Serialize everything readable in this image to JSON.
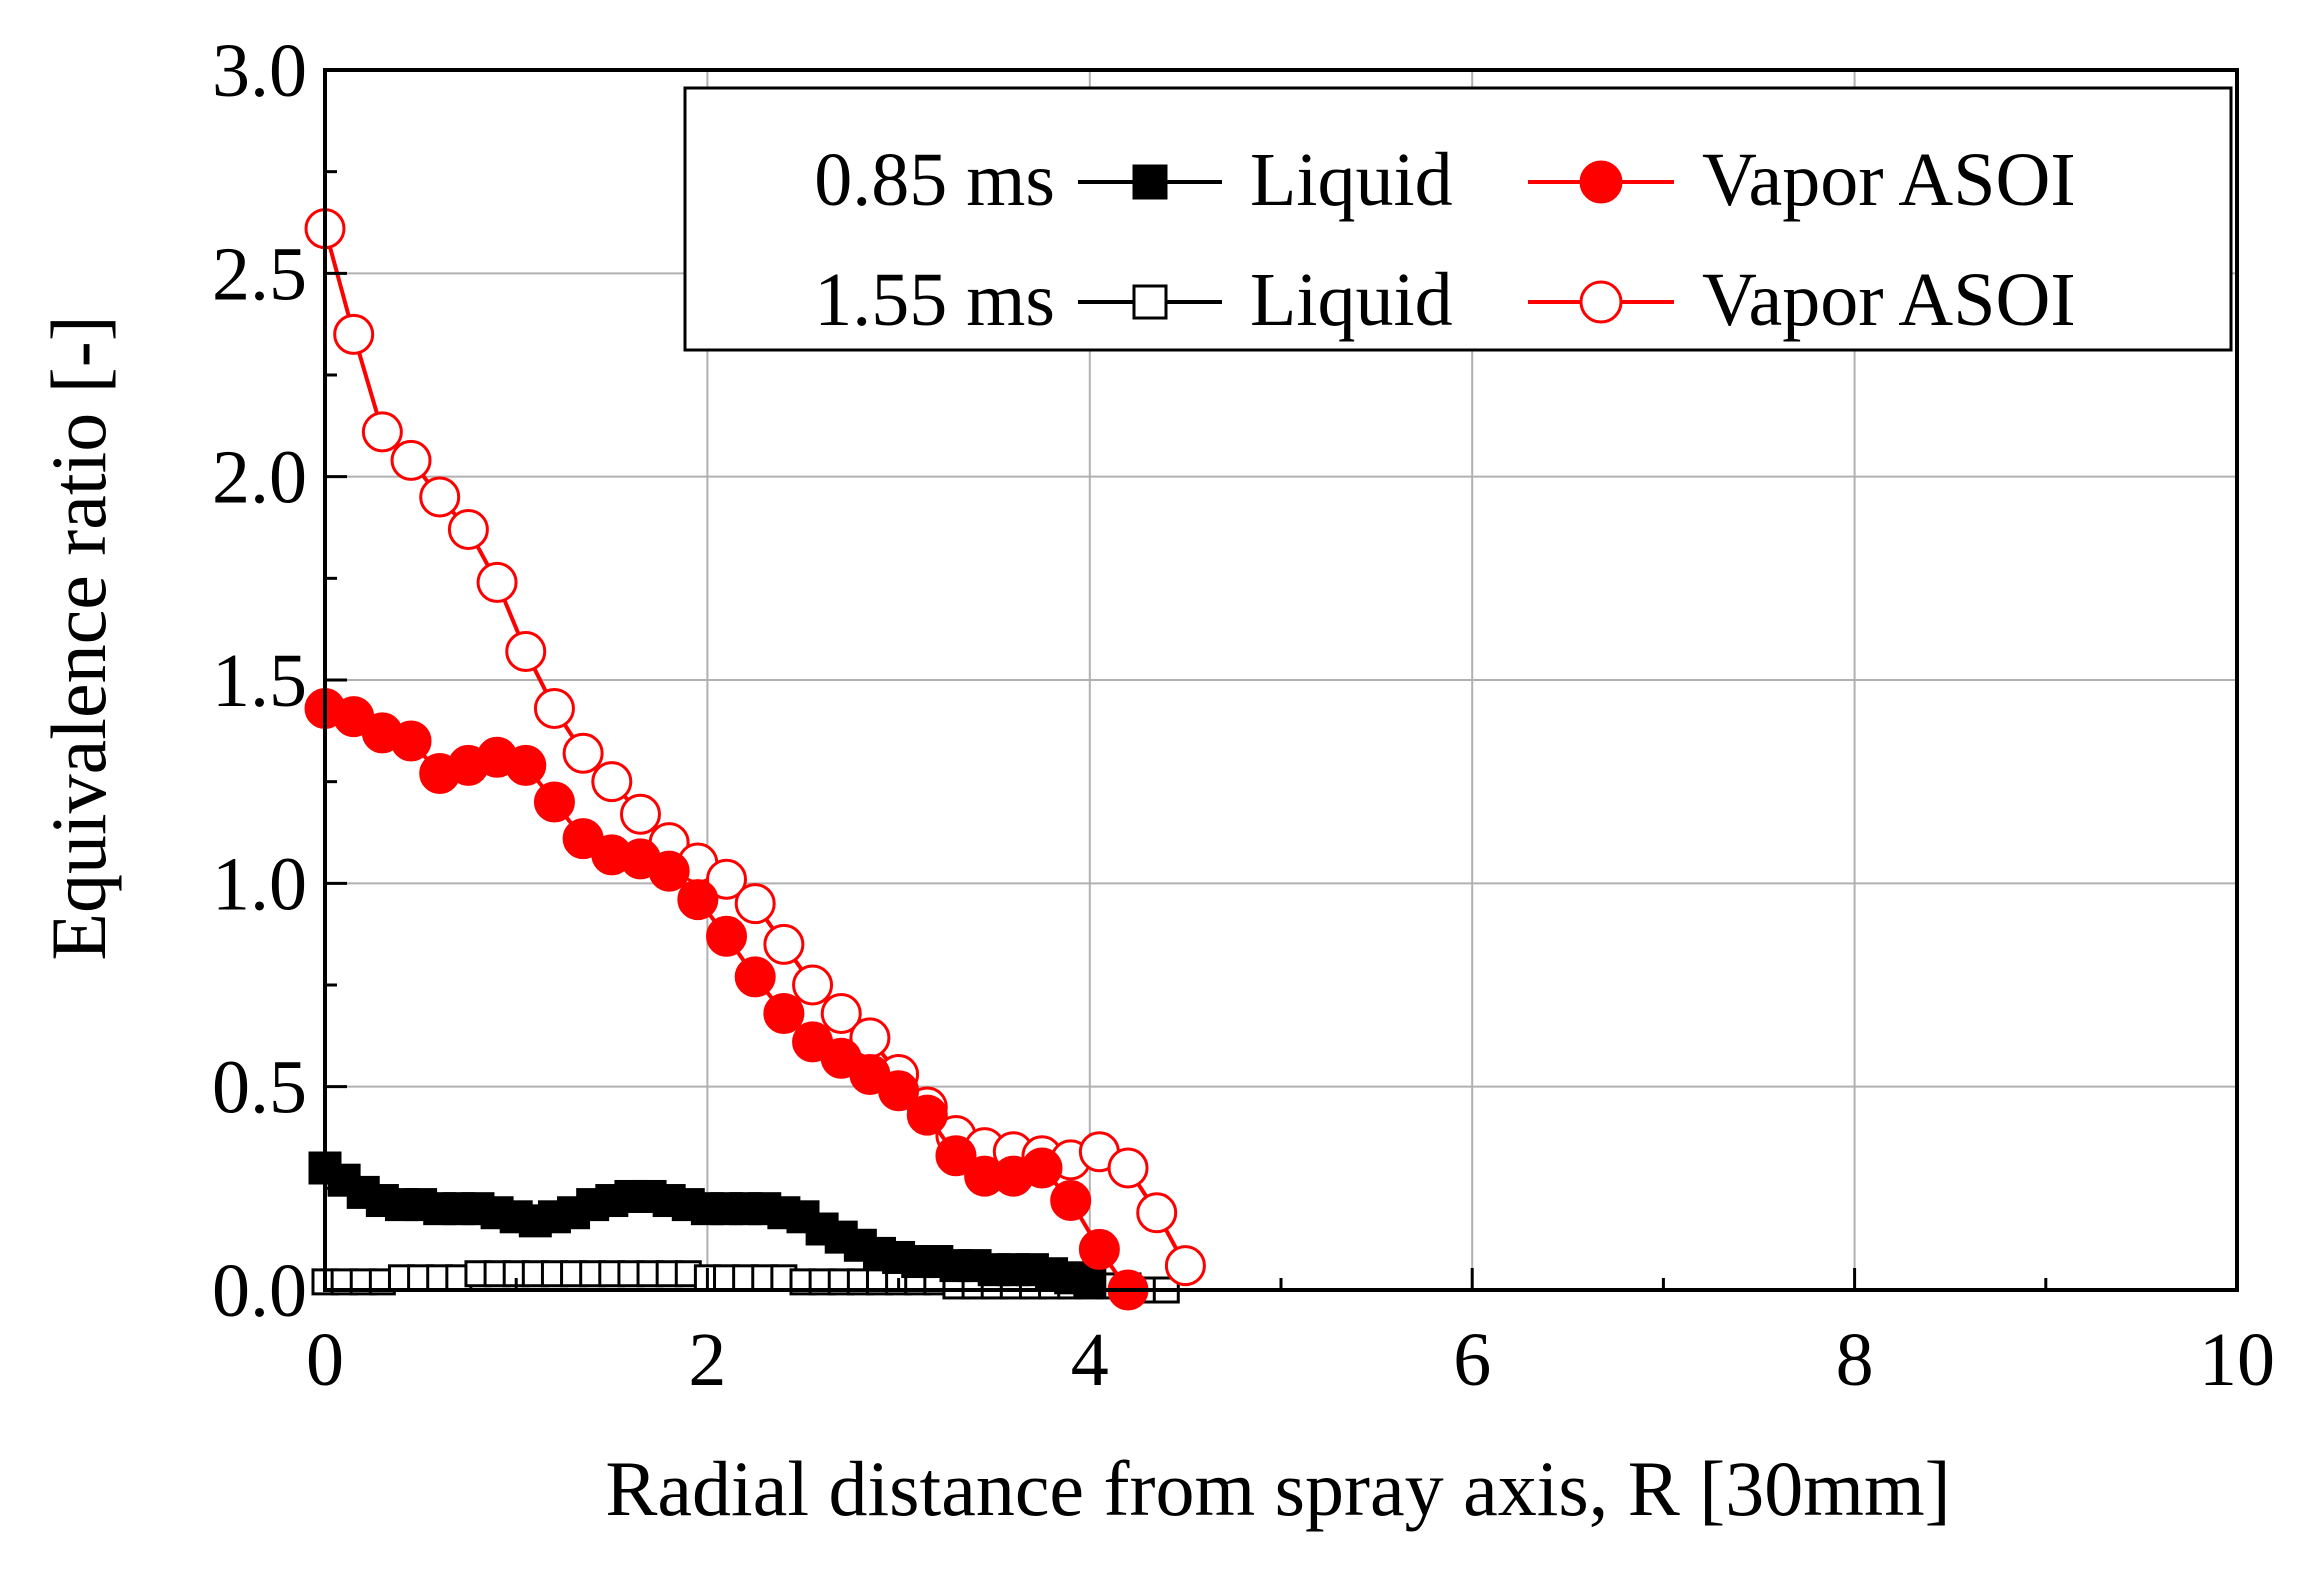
{
  "chart_data": {
    "type": "line",
    "title": "",
    "xlabel": "Radial distance from spray axis, R [30mm]",
    "ylabel": "Equivalence ratio [-]",
    "xlim": [
      0,
      10
    ],
    "ylim": [
      0,
      3.0
    ],
    "x_ticks": [
      "0",
      "2",
      "4",
      "6",
      "8",
      "10"
    ],
    "y_ticks": [
      "0.0",
      "0.5",
      "1.0",
      "1.5",
      "2.0",
      "2.5",
      "3.0"
    ],
    "grid": true,
    "legend": {
      "position": "top-right",
      "rows": [
        {
          "time": "0.85 ms",
          "liquid_label": "Liquid",
          "vapor_label": "Vapor ASOI"
        },
        {
          "time": "1.55 ms",
          "liquid_label": "Liquid",
          "vapor_label": "Vapor ASOI"
        }
      ]
    },
    "series": [
      {
        "name": "0.85 ms Liquid",
        "color": "#000000",
        "marker": "square-filled",
        "x": [
          0,
          0.1,
          0.2,
          0.3,
          0.4,
          0.5,
          0.6,
          0.7,
          0.8,
          0.9,
          1.0,
          1.1,
          1.2,
          1.3,
          1.4,
          1.5,
          1.6,
          1.7,
          1.8,
          1.9,
          2.0,
          2.1,
          2.2,
          2.3,
          2.4,
          2.5,
          2.6,
          2.7,
          2.8,
          2.9,
          3.0,
          3.1,
          3.2,
          3.3,
          3.4,
          3.5,
          3.6,
          3.7,
          3.8,
          3.9,
          4.0
        ],
        "values": [
          0.3,
          0.27,
          0.24,
          0.22,
          0.21,
          0.21,
          0.2,
          0.2,
          0.2,
          0.19,
          0.18,
          0.17,
          0.18,
          0.19,
          0.21,
          0.22,
          0.23,
          0.23,
          0.22,
          0.21,
          0.2,
          0.2,
          0.2,
          0.2,
          0.19,
          0.18,
          0.15,
          0.13,
          0.11,
          0.09,
          0.08,
          0.07,
          0.07,
          0.06,
          0.06,
          0.05,
          0.05,
          0.05,
          0.04,
          0.03,
          0.02
        ]
      },
      {
        "name": "0.85 ms Vapor ASOI",
        "color": "#ff0000",
        "marker": "circle-filled",
        "x": [
          0,
          0.15,
          0.3,
          0.45,
          0.6,
          0.75,
          0.9,
          1.05,
          1.2,
          1.35,
          1.5,
          1.65,
          1.8,
          1.95,
          2.1,
          2.25,
          2.4,
          2.55,
          2.7,
          2.85,
          3.0,
          3.15,
          3.3,
          3.45,
          3.6,
          3.75,
          3.9,
          4.05,
          4.2
        ],
        "values": [
          1.43,
          1.41,
          1.37,
          1.35,
          1.27,
          1.29,
          1.31,
          1.29,
          1.2,
          1.11,
          1.07,
          1.06,
          1.03,
          0.96,
          0.87,
          0.77,
          0.68,
          0.61,
          0.57,
          0.53,
          0.49,
          0.43,
          0.33,
          0.28,
          0.28,
          0.3,
          0.22,
          0.1,
          0.0
        ]
      },
      {
        "name": "1.55 ms Liquid",
        "color": "#000000",
        "marker": "square-open",
        "x": [
          0,
          0.1,
          0.2,
          0.3,
          0.4,
          0.5,
          0.6,
          0.7,
          0.8,
          0.9,
          1.0,
          1.1,
          1.2,
          1.3,
          1.4,
          1.5,
          1.6,
          1.7,
          1.8,
          1.9,
          2.0,
          2.1,
          2.2,
          2.3,
          2.4,
          2.5,
          2.6,
          2.7,
          2.8,
          2.9,
          3.0,
          3.1,
          3.2,
          3.3,
          3.4,
          3.5,
          3.6,
          3.7,
          3.8,
          3.9,
          4.0,
          4.1,
          4.2,
          4.3,
          4.4
        ],
        "values": [
          0.02,
          0.02,
          0.02,
          0.02,
          0.03,
          0.03,
          0.03,
          0.03,
          0.04,
          0.04,
          0.04,
          0.04,
          0.04,
          0.04,
          0.04,
          0.04,
          0.04,
          0.04,
          0.04,
          0.04,
          0.03,
          0.03,
          0.03,
          0.03,
          0.03,
          0.02,
          0.02,
          0.02,
          0.02,
          0.02,
          0.02,
          0.02,
          0.02,
          0.01,
          0.01,
          0.01,
          0.01,
          0.01,
          0.01,
          0.01,
          0.01,
          0.01,
          0.01,
          0.0,
          0.0
        ]
      },
      {
        "name": "1.55 ms Vapor ASOI",
        "color": "#ff0000",
        "marker": "circle-open",
        "x": [
          0,
          0.15,
          0.3,
          0.45,
          0.6,
          0.75,
          0.9,
          1.05,
          1.2,
          1.35,
          1.5,
          1.65,
          1.8,
          1.95,
          2.1,
          2.25,
          2.4,
          2.55,
          2.7,
          2.85,
          3.0,
          3.15,
          3.3,
          3.45,
          3.6,
          3.75,
          3.9,
          4.05,
          4.2,
          4.35,
          4.5
        ],
        "values": [
          2.61,
          2.35,
          2.11,
          2.04,
          1.95,
          1.87,
          1.74,
          1.57,
          1.43,
          1.32,
          1.25,
          1.17,
          1.1,
          1.05,
          1.01,
          0.95,
          0.85,
          0.75,
          0.68,
          0.62,
          0.53,
          0.45,
          0.38,
          0.35,
          0.34,
          0.33,
          0.32,
          0.34,
          0.3,
          0.19,
          0.06
        ]
      }
    ]
  }
}
